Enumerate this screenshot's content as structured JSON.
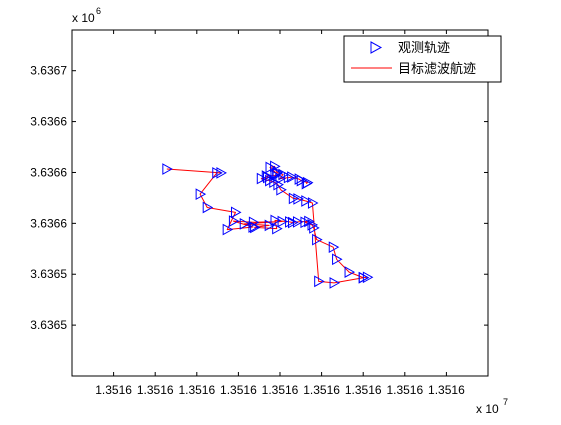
{
  "chart_data": {
    "type": "line",
    "title": "",
    "xlabel": "",
    "ylabel": "",
    "x_multiplier": "x 10",
    "x_multiplier_exp": "7",
    "y_multiplier": "x 10",
    "y_multiplier_exp": "6",
    "xlim": [
      13515.9,
      13516.0
    ],
    "ylim": [
      3636.4,
      3636.74
    ],
    "x_ticks": [
      13515.91,
      13515.92,
      13515.93,
      13515.94,
      13515.95,
      13515.96,
      13515.97,
      13515.98,
      13515.99
    ],
    "x_tick_labels": [
      "1.3516",
      "1.3516",
      "1.3516",
      "1.3516",
      "1.3516",
      "1.3516",
      "1.3516",
      "1.3516",
      "1.3516"
    ],
    "y_ticks": [
      3636.45,
      3636.5,
      3636.55,
      3636.6,
      3636.65,
      3636.7
    ],
    "y_tick_labels": [
      "3.6365",
      "3.6365",
      "3.6366",
      "3.6366",
      "3.6366",
      "3.6367"
    ],
    "grid": true,
    "legend_position": "top-right",
    "series": [
      {
        "name": "观测轨迹",
        "style": "markers",
        "marker": "triangle-right",
        "color": "#0000ff",
        "x": [
          13515.9228,
          13515.9358,
          13515.9348,
          13515.9308,
          13515.9325,
          13515.9393,
          13515.9373,
          13515.9435,
          13515.9388,
          13515.9436,
          13515.9505,
          13515.9414,
          13515.9474,
          13515.9439,
          13515.9492,
          13515.9488,
          13515.9523,
          13515.953,
          13515.9542,
          13515.9569,
          13515.956,
          13515.9577,
          13515.9581,
          13515.9588,
          13515.9628,
          13515.9636,
          13515.9666,
          13515.97,
          13515.971,
          13515.97,
          13515.963,
          13515.9593,
          13515.9578,
          13515.9562,
          13515.9543,
          13515.9532,
          13515.9502,
          13515.9495,
          13515.9485,
          13515.9475,
          13515.9455,
          13515.947,
          13515.9467,
          13515.9488,
          13515.9492,
          13515.9476,
          13515.9487,
          13515.9493,
          13515.9507,
          13515.95,
          13515.952,
          13515.9528,
          13515.9546,
          13515.9551,
          13515.9566,
          13515.9563
        ],
        "y": [
          3636.6034,
          3636.5996,
          3636.5996,
          3636.5787,
          3636.5656,
          3636.5608,
          3636.5439,
          3636.5464,
          3636.5522,
          3636.551,
          3636.5518,
          3636.5495,
          3636.548,
          3636.546,
          3636.5448,
          3636.5529,
          3636.5514,
          3636.5508,
          3636.5514,
          3636.5519,
          3636.551,
          3636.5485,
          3636.5455,
          3636.534,
          3636.5266,
          3636.5147,
          3636.5021,
          3636.4967,
          3636.497,
          3636.4965,
          3636.4915,
          3636.493,
          3636.57,
          3636.572,
          3636.574,
          3636.5745,
          3636.583,
          3636.588,
          3636.5905,
          3636.592,
          3636.594,
          3636.595,
          3636.5965,
          3636.597,
          3636.599,
          3636.605,
          3636.606,
          3636.6,
          3636.598,
          3636.594,
          3636.595,
          3636.5955,
          3636.5935,
          3636.592,
          3636.59,
          3636.589
        ]
      },
      {
        "name": "目标滤波航迹",
        "style": "line",
        "color": "#ff0000",
        "x": [
          13515.9228,
          13515.9358,
          13515.9348,
          13515.9308,
          13515.9325,
          13515.9393,
          13515.9373,
          13515.9435,
          13515.9388,
          13515.9436,
          13515.9505,
          13515.9414,
          13515.9474,
          13515.9439,
          13515.9492,
          13515.9488,
          13515.9523,
          13515.953,
          13515.9542,
          13515.9569,
          13515.956,
          13515.9577,
          13515.9581,
          13515.9588,
          13515.9628,
          13515.9636,
          13515.9666,
          13515.97,
          13515.971,
          13515.97,
          13515.963,
          13515.9593,
          13515.9578,
          13515.9562,
          13515.9543,
          13515.9532,
          13515.9502,
          13515.9495,
          13515.9485,
          13515.9475,
          13515.9455,
          13515.947,
          13515.9467,
          13515.9488,
          13515.9492,
          13515.9476,
          13515.9487,
          13515.9493,
          13515.9507,
          13515.95,
          13515.952,
          13515.9528,
          13515.9546,
          13515.9551,
          13515.9566,
          13515.9563
        ],
        "y": [
          3636.6034,
          3636.5996,
          3636.5996,
          3636.5787,
          3636.5656,
          3636.5608,
          3636.5439,
          3636.5464,
          3636.5522,
          3636.551,
          3636.5518,
          3636.5495,
          3636.548,
          3636.546,
          3636.5448,
          3636.5529,
          3636.5514,
          3636.5508,
          3636.5514,
          3636.5519,
          3636.551,
          3636.5485,
          3636.5455,
          3636.534,
          3636.5266,
          3636.5147,
          3636.5021,
          3636.4967,
          3636.497,
          3636.4965,
          3636.4915,
          3636.493,
          3636.57,
          3636.572,
          3636.574,
          3636.5745,
          3636.583,
          3636.588,
          3636.5905,
          3636.592,
          3636.594,
          3636.595,
          3636.5965,
          3636.597,
          3636.599,
          3636.605,
          3636.606,
          3636.6,
          3636.598,
          3636.594,
          3636.595,
          3636.5955,
          3636.5935,
          3636.592,
          3636.59,
          3636.589
        ]
      }
    ]
  }
}
